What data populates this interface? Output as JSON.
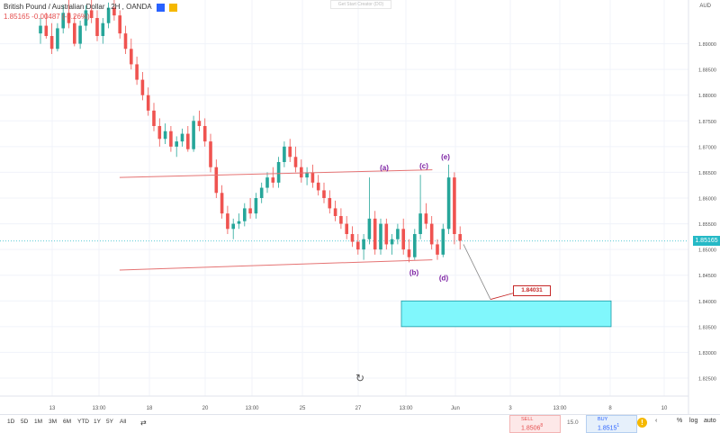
{
  "header": {
    "symbol": "British Pound / Australian Dollar",
    "interval": "2H",
    "broker": "OANDA",
    "price": "1.85165",
    "change": "-0.00487",
    "change_pct": "-0.26%",
    "box_colors": [
      "#2962ff",
      "#f5b800"
    ]
  },
  "watermark": "Get Start Creator (DO)",
  "axis": {
    "currency": "AUD",
    "price_ticks": [
      "1.89000",
      "1.88500",
      "1.88000",
      "1.87500",
      "1.87000",
      "1.86500",
      "1.86000",
      "1.85500",
      "1.85000",
      "1.84500",
      "1.84000",
      "1.83500",
      "1.83000",
      "1.82500"
    ],
    "last_price_tag": "1.85165",
    "date_ticks": [
      "13",
      "13:00",
      "18",
      "20",
      "13:00",
      "25",
      "27",
      "13:00",
      "Jun",
      "3",
      "13:00",
      "8",
      "10"
    ]
  },
  "chart_data": {
    "type": "candlestick",
    "symbol": "British Pound / Australian Dollar",
    "interval": "2H",
    "ylim": [
      1.8215,
      1.8985
    ],
    "last_price": 1.85165,
    "target_price": 1.84031,
    "wave_labels": [
      "(a)",
      "(b)",
      "(c)",
      "(d)",
      "(e)"
    ],
    "target_label": "1.84031",
    "target_zone": {
      "from": 1.835,
      "to": 1.84
    },
    "triangle": {
      "upper": [
        [
          13,
          1.864
        ],
        [
          58,
          1.8655
        ]
      ],
      "lower": [
        [
          13,
          1.846
        ],
        [
          58,
          1.848
        ]
      ]
    },
    "candles": [
      [
        1.892,
        1.895,
        1.89,
        1.8935
      ],
      [
        1.8935,
        1.896,
        1.891,
        1.8915
      ],
      [
        1.8915,
        1.894,
        1.888,
        1.889
      ],
      [
        1.889,
        1.894,
        1.8885,
        1.893
      ],
      [
        1.893,
        1.8975,
        1.892,
        1.896
      ],
      [
        1.896,
        1.8985,
        1.893,
        1.894
      ],
      [
        1.894,
        1.8955,
        1.8895,
        1.89
      ],
      [
        1.89,
        1.8945,
        1.889,
        1.8935
      ],
      [
        1.8935,
        1.8975,
        1.8925,
        1.8965
      ],
      [
        1.8965,
        1.8985,
        1.894,
        1.895
      ],
      [
        1.895,
        1.8965,
        1.8905,
        1.8915
      ],
      [
        1.8915,
        1.895,
        1.89,
        1.894
      ],
      [
        1.894,
        1.898,
        1.893,
        1.897
      ],
      [
        1.897,
        1.8985,
        1.8945,
        1.8955
      ],
      [
        1.8955,
        1.8965,
        1.891,
        1.892
      ],
      [
        1.892,
        1.8935,
        1.888,
        1.889
      ],
      [
        1.889,
        1.891,
        1.885,
        1.886
      ],
      [
        1.886,
        1.8875,
        1.882,
        1.883
      ],
      [
        1.883,
        1.8845,
        1.879,
        1.88
      ],
      [
        1.88,
        1.8815,
        1.876,
        1.877
      ],
      [
        1.877,
        1.8785,
        1.873,
        1.874
      ],
      [
        1.874,
        1.8755,
        1.87,
        1.8715
      ],
      [
        1.8715,
        1.8745,
        1.8705,
        1.873
      ],
      [
        1.873,
        1.874,
        1.869,
        1.87
      ],
      [
        1.87,
        1.872,
        1.868,
        1.871
      ],
      [
        1.871,
        1.8735,
        1.87,
        1.8725
      ],
      [
        1.8725,
        1.874,
        1.869,
        1.8695
      ],
      [
        1.8695,
        1.876,
        1.869,
        1.875
      ],
      [
        1.875,
        1.877,
        1.873,
        1.874
      ],
      [
        1.874,
        1.8755,
        1.87,
        1.871
      ],
      [
        1.871,
        1.8725,
        1.865,
        1.866
      ],
      [
        1.866,
        1.8675,
        1.86,
        1.861
      ],
      [
        1.861,
        1.8625,
        1.856,
        1.857
      ],
      [
        1.857,
        1.8585,
        1.853,
        1.854
      ],
      [
        1.854,
        1.856,
        1.852,
        1.855
      ],
      [
        1.855,
        1.857,
        1.854,
        1.8555
      ],
      [
        1.8555,
        1.859,
        1.8545,
        1.858
      ],
      [
        1.858,
        1.86,
        1.856,
        1.857
      ],
      [
        1.857,
        1.861,
        1.856,
        1.86
      ],
      [
        1.86,
        1.863,
        1.859,
        1.862
      ],
      [
        1.862,
        1.865,
        1.861,
        1.864
      ],
      [
        1.864,
        1.866,
        1.862,
        1.863
      ],
      [
        1.863,
        1.868,
        1.862,
        1.867
      ],
      [
        1.867,
        1.871,
        1.866,
        1.87
      ],
      [
        1.87,
        1.8715,
        1.867,
        1.868
      ],
      [
        1.868,
        1.87,
        1.865,
        1.866
      ],
      [
        1.866,
        1.8675,
        1.863,
        1.864
      ],
      [
        1.864,
        1.866,
        1.8625,
        1.865
      ],
      [
        1.865,
        1.8665,
        1.862,
        1.863
      ],
      [
        1.863,
        1.8645,
        1.8605,
        1.8615
      ],
      [
        1.8615,
        1.863,
        1.859,
        1.86
      ],
      [
        1.86,
        1.8615,
        1.857,
        1.858
      ],
      [
        1.858,
        1.8595,
        1.8555,
        1.8565
      ],
      [
        1.8565,
        1.858,
        1.854,
        1.855
      ],
      [
        1.855,
        1.8565,
        1.852,
        1.853
      ],
      [
        1.853,
        1.8545,
        1.8505,
        1.8515
      ],
      [
        1.8515,
        1.853,
        1.849,
        1.85
      ],
      [
        1.85,
        1.853,
        1.848,
        1.852
      ],
      [
        1.852,
        1.864,
        1.851,
        1.856
      ],
      [
        1.856,
        1.8575,
        1.849,
        1.85
      ],
      [
        1.85,
        1.856,
        1.849,
        1.855
      ],
      [
        1.855,
        1.856,
        1.85,
        1.851
      ],
      [
        1.851,
        1.853,
        1.849,
        1.852
      ],
      [
        1.852,
        1.855,
        1.851,
        1.854
      ],
      [
        1.854,
        1.856,
        1.849,
        1.85
      ],
      [
        1.85,
        1.852,
        1.8475,
        1.8485
      ],
      [
        1.8485,
        1.854,
        1.848,
        1.853
      ],
      [
        1.853,
        1.8645,
        1.852,
        1.857
      ],
      [
        1.857,
        1.859,
        1.854,
        1.855
      ],
      [
        1.855,
        1.8565,
        1.85,
        1.851
      ],
      [
        1.851,
        1.852,
        1.848,
        1.849
      ],
      [
        1.849,
        1.855,
        1.8485,
        1.854
      ],
      [
        1.854,
        1.8665,
        1.853,
        1.864
      ],
      [
        1.864,
        1.865,
        1.851,
        1.853
      ],
      [
        1.853,
        1.8545,
        1.85,
        1.8517
      ]
    ]
  },
  "toolbar": {
    "timeframes": [
      "1D",
      "5D",
      "1M",
      "3M",
      "6M",
      "YTD",
      "1Y",
      "5Y",
      "All"
    ],
    "sell_label": "SELL",
    "sell_price": "1.8506",
    "sell_suffix": "8",
    "spread": "15.0",
    "buy_label": "BUY",
    "buy_price": "1.8515",
    "buy_suffix": "1",
    "right_buttons": [
      "%",
      "log",
      "auto"
    ]
  }
}
